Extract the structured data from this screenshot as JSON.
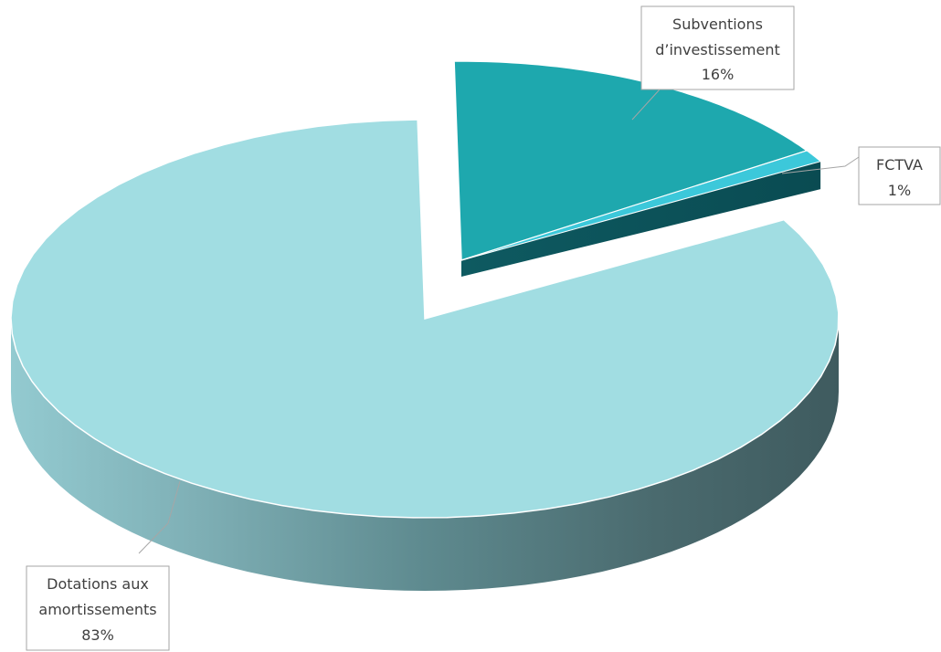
{
  "chart_data": {
    "type": "pie",
    "style": "3d-exploded",
    "title": "",
    "slices": [
      {
        "label_lines": [
          "Subventions",
          "d’investissement"
        ],
        "percent_label": "16%",
        "value": 16,
        "color": "#1EA8AE"
      },
      {
        "label_lines": [
          "FCTVA"
        ],
        "percent_label": "1%",
        "value": 1,
        "color": "#3CC8DA"
      },
      {
        "label_lines": [
          "Dotations aux",
          "amortissements"
        ],
        "percent_label": "83%",
        "value": 83,
        "color": "#A1DDE2"
      }
    ],
    "legend": "none",
    "data_labels": "callout boxes with leader lines"
  }
}
